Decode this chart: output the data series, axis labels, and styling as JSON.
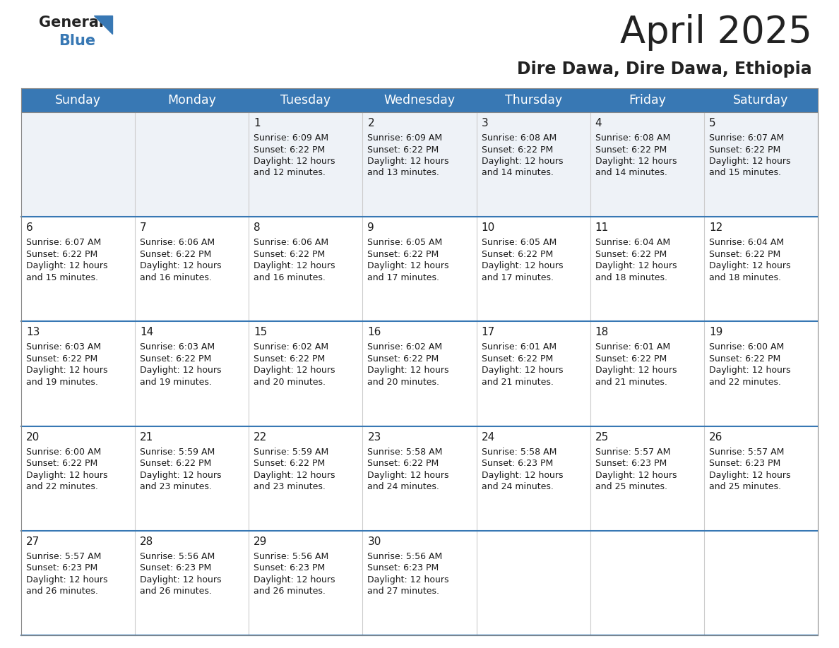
{
  "title": "April 2025",
  "subtitle": "Dire Dawa, Dire Dawa, Ethiopia",
  "header_color": "#3878b4",
  "header_text_color": "#ffffff",
  "row_bg_odd": "#eef2f7",
  "row_bg_even": "#ffffff",
  "line_color": "#3878b4",
  "text_color": "#1a1a1a",
  "day_headers": [
    "Sunday",
    "Monday",
    "Tuesday",
    "Wednesday",
    "Thursday",
    "Friday",
    "Saturday"
  ],
  "title_fontsize": 38,
  "subtitle_fontsize": 17,
  "header_fontsize": 12.5,
  "day_num_fontsize": 11,
  "cell_fontsize": 9,
  "logo_general_size": 15,
  "logo_blue_size": 15,
  "calendar": [
    [
      {
        "day": "",
        "sunrise": "",
        "sunset": "",
        "daylight": ""
      },
      {
        "day": "",
        "sunrise": "",
        "sunset": "",
        "daylight": ""
      },
      {
        "day": "1",
        "sunrise": "6:09 AM",
        "sunset": "6:22 PM",
        "daylight": "12 hours and 12 minutes."
      },
      {
        "day": "2",
        "sunrise": "6:09 AM",
        "sunset": "6:22 PM",
        "daylight": "12 hours and 13 minutes."
      },
      {
        "day": "3",
        "sunrise": "6:08 AM",
        "sunset": "6:22 PM",
        "daylight": "12 hours and 14 minutes."
      },
      {
        "day": "4",
        "sunrise": "6:08 AM",
        "sunset": "6:22 PM",
        "daylight": "12 hours and 14 minutes."
      },
      {
        "day": "5",
        "sunrise": "6:07 AM",
        "sunset": "6:22 PM",
        "daylight": "12 hours and 15 minutes."
      }
    ],
    [
      {
        "day": "6",
        "sunrise": "6:07 AM",
        "sunset": "6:22 PM",
        "daylight": "12 hours and 15 minutes."
      },
      {
        "day": "7",
        "sunrise": "6:06 AM",
        "sunset": "6:22 PM",
        "daylight": "12 hours and 16 minutes."
      },
      {
        "day": "8",
        "sunrise": "6:06 AM",
        "sunset": "6:22 PM",
        "daylight": "12 hours and 16 minutes."
      },
      {
        "day": "9",
        "sunrise": "6:05 AM",
        "sunset": "6:22 PM",
        "daylight": "12 hours and 17 minutes."
      },
      {
        "day": "10",
        "sunrise": "6:05 AM",
        "sunset": "6:22 PM",
        "daylight": "12 hours and 17 minutes."
      },
      {
        "day": "11",
        "sunrise": "6:04 AM",
        "sunset": "6:22 PM",
        "daylight": "12 hours and 18 minutes."
      },
      {
        "day": "12",
        "sunrise": "6:04 AM",
        "sunset": "6:22 PM",
        "daylight": "12 hours and 18 minutes."
      }
    ],
    [
      {
        "day": "13",
        "sunrise": "6:03 AM",
        "sunset": "6:22 PM",
        "daylight": "12 hours and 19 minutes."
      },
      {
        "day": "14",
        "sunrise": "6:03 AM",
        "sunset": "6:22 PM",
        "daylight": "12 hours and 19 minutes."
      },
      {
        "day": "15",
        "sunrise": "6:02 AM",
        "sunset": "6:22 PM",
        "daylight": "12 hours and 20 minutes."
      },
      {
        "day": "16",
        "sunrise": "6:02 AM",
        "sunset": "6:22 PM",
        "daylight": "12 hours and 20 minutes."
      },
      {
        "day": "17",
        "sunrise": "6:01 AM",
        "sunset": "6:22 PM",
        "daylight": "12 hours and 21 minutes."
      },
      {
        "day": "18",
        "sunrise": "6:01 AM",
        "sunset": "6:22 PM",
        "daylight": "12 hours and 21 minutes."
      },
      {
        "day": "19",
        "sunrise": "6:00 AM",
        "sunset": "6:22 PM",
        "daylight": "12 hours and 22 minutes."
      }
    ],
    [
      {
        "day": "20",
        "sunrise": "6:00 AM",
        "sunset": "6:22 PM",
        "daylight": "12 hours and 22 minutes."
      },
      {
        "day": "21",
        "sunrise": "5:59 AM",
        "sunset": "6:22 PM",
        "daylight": "12 hours and 23 minutes."
      },
      {
        "day": "22",
        "sunrise": "5:59 AM",
        "sunset": "6:22 PM",
        "daylight": "12 hours and 23 minutes."
      },
      {
        "day": "23",
        "sunrise": "5:58 AM",
        "sunset": "6:22 PM",
        "daylight": "12 hours and 24 minutes."
      },
      {
        "day": "24",
        "sunrise": "5:58 AM",
        "sunset": "6:23 PM",
        "daylight": "12 hours and 24 minutes."
      },
      {
        "day": "25",
        "sunrise": "5:57 AM",
        "sunset": "6:23 PM",
        "daylight": "12 hours and 25 minutes."
      },
      {
        "day": "26",
        "sunrise": "5:57 AM",
        "sunset": "6:23 PM",
        "daylight": "12 hours and 25 minutes."
      }
    ],
    [
      {
        "day": "27",
        "sunrise": "5:57 AM",
        "sunset": "6:23 PM",
        "daylight": "12 hours and 26 minutes."
      },
      {
        "day": "28",
        "sunrise": "5:56 AM",
        "sunset": "6:23 PM",
        "daylight": "12 hours and 26 minutes."
      },
      {
        "day": "29",
        "sunrise": "5:56 AM",
        "sunset": "6:23 PM",
        "daylight": "12 hours and 26 minutes."
      },
      {
        "day": "30",
        "sunrise": "5:56 AM",
        "sunset": "6:23 PM",
        "daylight": "12 hours and 27 minutes."
      },
      {
        "day": "",
        "sunrise": "",
        "sunset": "",
        "daylight": ""
      },
      {
        "day": "",
        "sunrise": "",
        "sunset": "",
        "daylight": ""
      },
      {
        "day": "",
        "sunrise": "",
        "sunset": "",
        "daylight": ""
      }
    ]
  ]
}
